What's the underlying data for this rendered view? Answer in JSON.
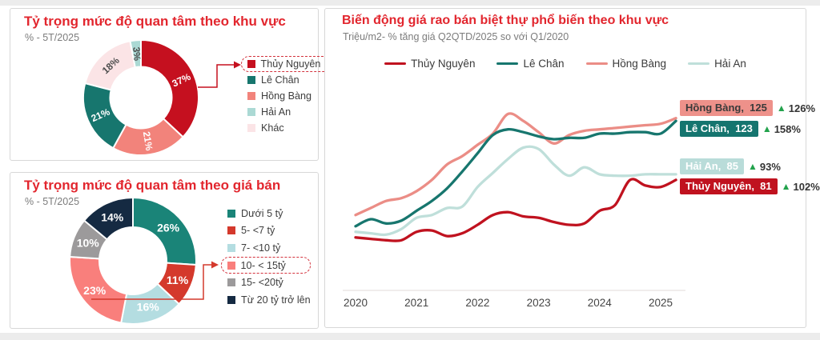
{
  "colors": {
    "title_red": "#e2262e",
    "up_green": "#22a24c",
    "axis_text": "#454545",
    "legend_text": "#3d3d3d",
    "highlight_dash": "#d3313c"
  },
  "chart_data": [
    {
      "type": "pie",
      "donut": true,
      "title": "Tỷ trọng mức độ quan tâm theo khu vực",
      "subtitle": "% - 5T/2025",
      "slices": [
        {
          "label": "Thủy Nguyên",
          "value": 37,
          "color": "#c5101f",
          "text_color": "#ffffff",
          "label_rotation": -25
        },
        {
          "label": "Hồng Bàng",
          "value": 21,
          "color": "#f2837b",
          "text_color": "#ffffff",
          "label_rotation": 81
        },
        {
          "label": "Lê Chân",
          "value": 21,
          "color": "#17766e",
          "text_color": "#ffffff",
          "label_rotation": -24
        },
        {
          "label": "Khác",
          "value": 18,
          "color": "#fbe4e6",
          "text_color": "#4d4d4d",
          "label_rotation": -43
        },
        {
          "label": "Hải An",
          "value": 3,
          "color": "#abd9d4",
          "text_color": "#4d4d4d",
          "label_rotation": 85
        }
      ],
      "legend_items": [
        {
          "label": "Thủy Nguyên",
          "color": "#c5101f",
          "highlighted": true
        },
        {
          "label": "Lê Chân",
          "color": "#17766e",
          "highlighted": false
        },
        {
          "label": "Hồng Bàng",
          "color": "#f2837b",
          "highlighted": false
        },
        {
          "label": "Hải An",
          "color": "#abd9d4",
          "highlighted": false
        },
        {
          "label": "Khác",
          "color": "#fbe4e6",
          "highlighted": false
        }
      ]
    },
    {
      "type": "pie",
      "donut": true,
      "title": "Tỷ trọng mức độ quan tâm theo giá bán",
      "subtitle": "% - 5T/2025",
      "slices": [
        {
          "label": "Dưới 5 tỷ",
          "value": 26,
          "color": "#1a8478",
          "text_color": "#ffffff",
          "label_rotation": 0
        },
        {
          "label": "5- <7 tỷ",
          "value": 11,
          "color": "#d4392c",
          "text_color": "#ffffff",
          "label_rotation": 0
        },
        {
          "label": "7- <10 tỷ",
          "value": 16,
          "color": "#b4dde1",
          "text_color": "#ffffff",
          "label_rotation": 0
        },
        {
          "label": "10- < 15tỷ",
          "value": 23,
          "color": "#f97f7c",
          "text_color": "#ffffff",
          "label_rotation": 0
        },
        {
          "label": "15- <20tỷ",
          "value": 10,
          "color": "#9c9a9b",
          "text_color": "#ffffff",
          "label_rotation": 0
        },
        {
          "label": "Từ 20 tỷ trở lên",
          "value": 14,
          "color": "#152a42",
          "text_color": "#ffffff",
          "label_rotation": 0
        }
      ],
      "legend_items": [
        {
          "label": "Dưới 5 tỷ",
          "color": "#1a8478",
          "highlighted": false
        },
        {
          "label": "5- <7 tỷ",
          "color": "#d4392c",
          "highlighted": false
        },
        {
          "label": "7- <10 tỷ",
          "color": "#b4dde1",
          "highlighted": false
        },
        {
          "label": "10- < 15tỷ",
          "color": "#f97f7c",
          "highlighted": true
        },
        {
          "label": "15- <20tỷ",
          "color": "#9c9a9b",
          "highlighted": false
        },
        {
          "label": "Từ 20 tỷ trở lên",
          "color": "#152a42",
          "highlighted": false
        }
      ]
    },
    {
      "type": "line",
      "title": "Biến động giá rao bán biệt thự phổ biến theo khu vực",
      "subtitle": "Triệu/m2- % tăng giá Q2QTD/2025 so với Q1/2020",
      "grid": false,
      "legend_position": "top",
      "ylim": [
        30,
        140
      ],
      "x_tick_labels": [
        "2020",
        "2021",
        "2022",
        "2023",
        "2024",
        "2025"
      ],
      "x": [
        2020,
        2020.25,
        2020.5,
        2020.75,
        2021,
        2021.25,
        2021.5,
        2021.75,
        2022,
        2022.25,
        2022.5,
        2022.75,
        2023,
        2023.25,
        2023.5,
        2023.75,
        2024,
        2024.25,
        2024.5,
        2024.75,
        2025,
        2025.25
      ],
      "series": [
        {
          "name": "Thủy Nguyên",
          "color": "#c0121f",
          "values": [
            40,
            39,
            38,
            38,
            44,
            45,
            41,
            43,
            49,
            56,
            58,
            55,
            54,
            51,
            49,
            50,
            59,
            63,
            81,
            77,
            76,
            81
          ]
        },
        {
          "name": "Lê Chân",
          "color": "#17766e",
          "values": [
            48,
            53,
            50,
            52,
            59,
            66,
            75,
            87,
            100,
            113,
            117,
            115,
            112,
            110,
            111,
            111,
            114,
            114,
            115,
            115,
            114,
            123
          ]
        },
        {
          "name": "Hồng Bàng",
          "color": "#eb8d86",
          "values": [
            56,
            61,
            66,
            68,
            73,
            81,
            92,
            98,
            106,
            114,
            128,
            123,
            115,
            107,
            113,
            116,
            117,
            118,
            119,
            120,
            121,
            125
          ]
        },
        {
          "name": "Hải An",
          "color": "#bfdfda",
          "values": [
            44,
            43,
            42,
            46,
            54,
            56,
            61,
            62,
            76,
            86,
            96,
            104,
            103,
            92,
            84,
            90,
            85,
            84,
            84,
            85,
            85,
            85
          ]
        }
      ],
      "end_labels": [
        {
          "name": "Hồng Bàng",
          "value": 125,
          "change": "126%",
          "bg": "#ee918a",
          "text_color": "#3a3a3a"
        },
        {
          "name": "Lê Chân",
          "value": 123,
          "change": "158%",
          "bg": "#15756f",
          "text_color": "#ffffff"
        },
        {
          "name": "Hải An",
          "value": 85,
          "change": "93%",
          "bg": "#b9dcd9",
          "text_color": "#ffffff"
        },
        {
          "name": "Thủy Nguyên",
          "value": 81,
          "change": "102%",
          "bg": "#c0121f",
          "text_color": "#ffffff"
        }
      ]
    }
  ]
}
